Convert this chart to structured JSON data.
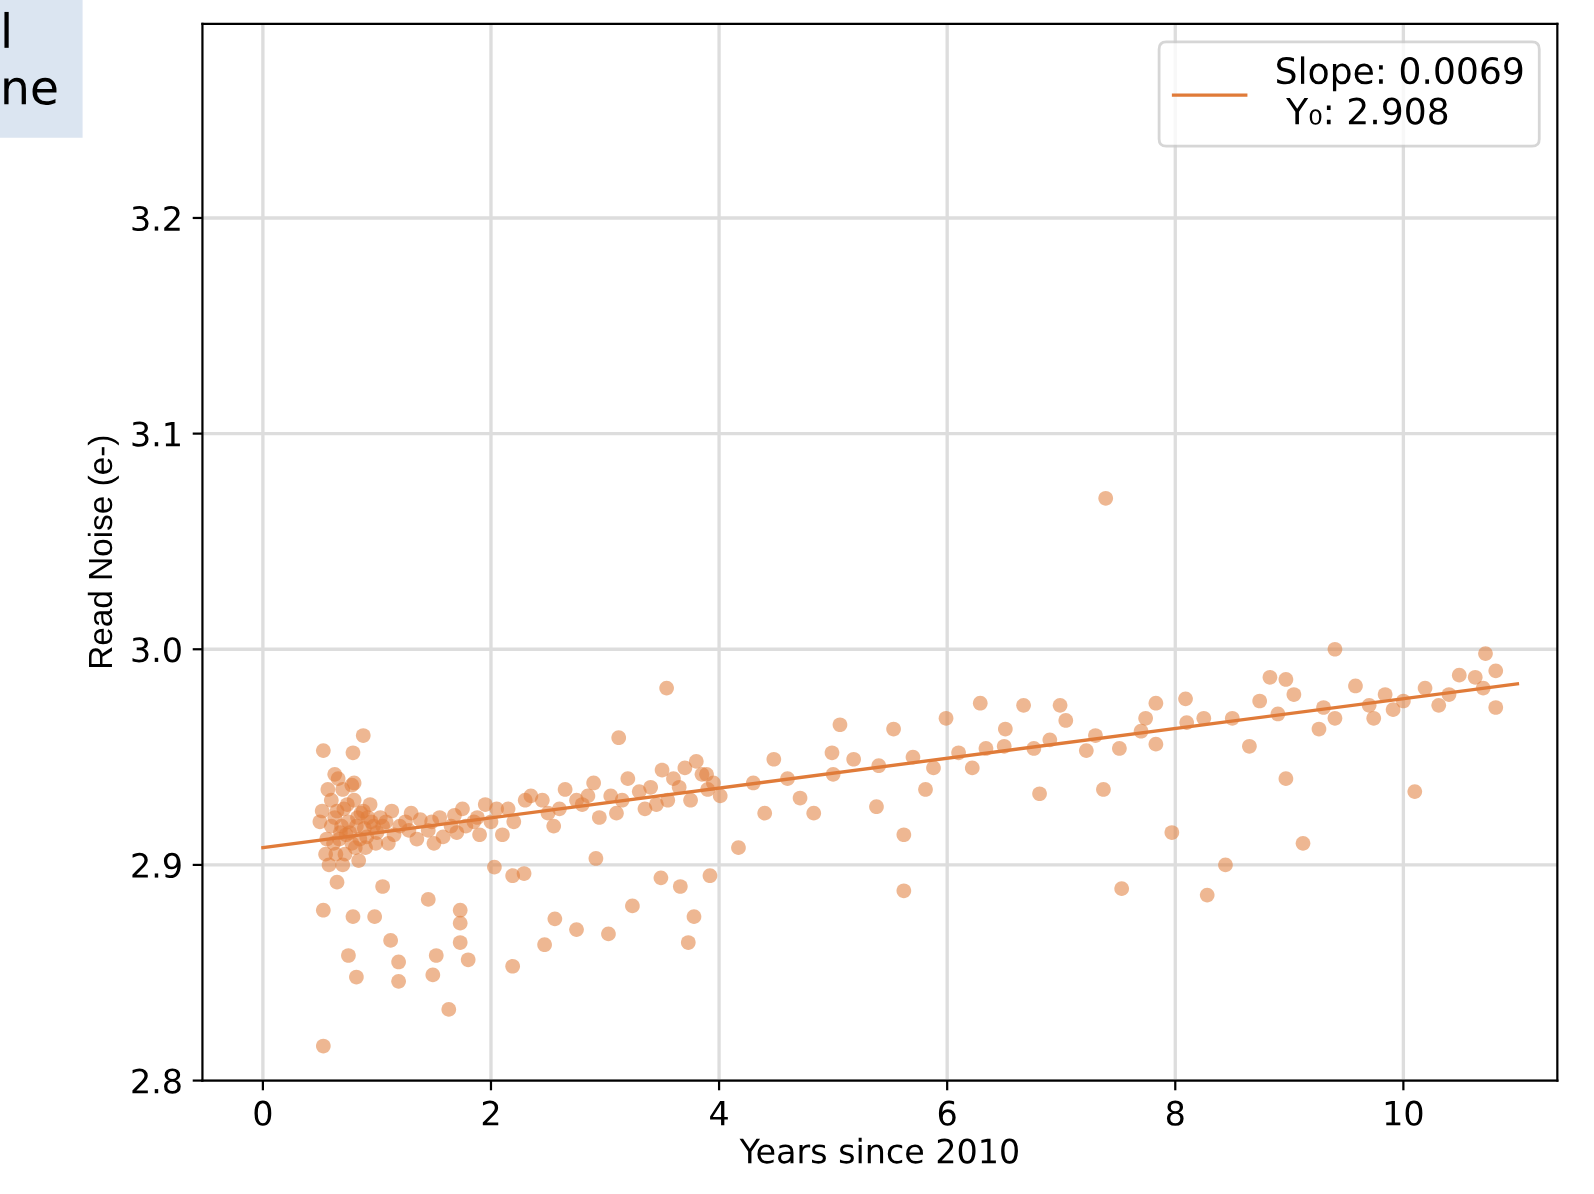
{
  "chart_data": {
    "type": "scatter",
    "xlabel": "Years since 2010",
    "ylabel": "Read Noise (e-)",
    "xlim": [
      -0.53,
      11.35
    ],
    "ylim": [
      2.8,
      3.29
    ],
    "xticks": [
      0,
      2,
      4,
      6,
      8,
      10
    ],
    "yticks": [
      2.8,
      2.9,
      {
        "value": 3.0,
        "label": "3.0"
      },
      3.1,
      3.2
    ],
    "grid": true,
    "legend": "top right",
    "annotations": [
      "l\nne"
    ],
    "series": [
      {
        "marker": "circle",
        "color": "#e07b39",
        "x": [
          0.6,
          0.63,
          0.67,
          0.71,
          0.76,
          0.81,
          0.86,
          0.91,
          0.97,
          0.57,
          0.64,
          0.69,
          0.73,
          0.78,
          0.83,
          0.89,
          0.94,
          0.99,
          1.03,
          1.08,
          1.13,
          1.2,
          1.28,
          1.38,
          1.48,
          1.58,
          1.68,
          1.78,
          1.88,
          2.0,
          2.15,
          2.45,
          2.6,
          2.85,
          3.15,
          3.4,
          3.55,
          3.7,
          3.85,
          0.5,
          0.55,
          0.6,
          0.62,
          0.65,
          0.68,
          0.7,
          0.72,
          0.75,
          0.78,
          0.8,
          0.82,
          0.85,
          0.88,
          0.9,
          0.95,
          1.0,
          0.52,
          0.58,
          0.66,
          0.74,
          0.84,
          0.92,
          0.56,
          0.7,
          0.8,
          1.05,
          1.15,
          1.25,
          1.35,
          1.45,
          1.55,
          1.65,
          1.75,
          1.85,
          1.95,
          1.1,
          1.3,
          1.5,
          1.7,
          1.9,
          2.05,
          2.2,
          2.35,
          2.5,
          2.65,
          2.8,
          2.95,
          2.1,
          2.3,
          2.55,
          2.75,
          2.9,
          3.05,
          3.2,
          3.35,
          3.5,
          3.65,
          3.8,
          3.95,
          3.1,
          3.3,
          3.45,
          3.6,
          3.75,
          3.9,
          0.53,
          0.88,
          0.79,
          0.63,
          0.53,
          0.65,
          0.79,
          0.98,
          0.75,
          0.82,
          1.12,
          1.19,
          1.19,
          1.05,
          1.45,
          1.52,
          1.49,
          1.63,
          1.73,
          1.73,
          1.8,
          1.73,
          0.53,
          2.03,
          2.19,
          2.29,
          2.19,
          2.47,
          2.56,
          2.75,
          3.03,
          3.24,
          2.92,
          3.73,
          3.54,
          3.12,
          3.49,
          3.66,
          3.78,
          3.92,
          5.06,
          4.99,
          5.53,
          5.38,
          5.62,
          5.62,
          4.17,
          4.4,
          4.48,
          4.83,
          5.81,
          5.99,
          6.29,
          6.22,
          6.67,
          6.51,
          6.81,
          6.99,
          7.22,
          7.37,
          7.53,
          7.51,
          7.83,
          7.83,
          7.97,
          8.09,
          8.28,
          8.44,
          8.25,
          8.65,
          8.83,
          8.97,
          8.97,
          9.12,
          9.04,
          9.4,
          9.26,
          9.74,
          9.91,
          10.1,
          10.19,
          10.49,
          10.63,
          10.72,
          10.81,
          10.81,
          9.58,
          9.84,
          10.31,
          9.4,
          8.74,
          7.74,
          7.04,
          6.76,
          6.34,
          5.88,
          5.18,
          4.71,
          3.89,
          4.01,
          7.39,
          4.3,
          4.6,
          5.0,
          5.4,
          5.7,
          6.1,
          6.5,
          6.9,
          7.3,
          7.7,
          8.1,
          8.5,
          8.9,
          9.3,
          9.7,
          10.0,
          10.4,
          10.7
        ],
        "values": [
          2.918,
          2.922,
          2.912,
          2.926,
          2.915,
          2.908,
          2.924,
          2.913,
          2.918,
          2.935,
          2.905,
          2.918,
          2.914,
          2.937,
          2.922,
          2.917,
          2.928,
          2.91,
          2.922,
          2.92,
          2.925,
          2.918,
          2.916,
          2.921,
          2.92,
          2.913,
          2.923,
          2.918,
          2.922,
          2.92,
          2.926,
          2.93,
          2.926,
          2.932,
          2.93,
          2.936,
          2.93,
          2.945,
          2.942,
          2.92,
          2.905,
          2.93,
          2.91,
          2.925,
          2.915,
          2.935,
          2.905,
          2.92,
          2.91,
          2.93,
          2.918,
          2.912,
          2.925,
          2.908,
          2.92,
          2.915,
          2.925,
          2.9,
          2.94,
          2.928,
          2.902,
          2.922,
          2.912,
          2.9,
          2.938,
          2.918,
          2.914,
          2.92,
          2.912,
          2.916,
          2.922,
          2.918,
          2.926,
          2.92,
          2.928,
          2.91,
          2.924,
          2.91,
          2.915,
          2.914,
          2.926,
          2.92,
          2.932,
          2.924,
          2.935,
          2.928,
          2.922,
          2.914,
          2.93,
          2.918,
          2.93,
          2.938,
          2.932,
          2.94,
          2.926,
          2.944,
          2.936,
          2.948,
          2.938,
          2.924,
          2.934,
          2.928,
          2.94,
          2.93,
          2.935,
          2.953,
          2.96,
          2.952,
          2.942,
          2.879,
          2.892,
          2.876,
          2.876,
          2.858,
          2.848,
          2.865,
          2.855,
          2.846,
          2.89,
          2.884,
          2.858,
          2.849,
          2.833,
          2.879,
          2.864,
          2.856,
          2.873,
          2.816,
          2.899,
          2.895,
          2.896,
          2.853,
          2.863,
          2.875,
          2.87,
          2.868,
          2.881,
          2.903,
          2.864,
          2.982,
          2.959,
          2.894,
          2.89,
          2.876,
          2.895,
          2.965,
          2.952,
          2.963,
          2.927,
          2.914,
          2.888,
          2.908,
          2.924,
          2.949,
          2.924,
          2.935,
          2.968,
          2.975,
          2.945,
          2.974,
          2.963,
          2.933,
          2.974,
          2.953,
          2.935,
          2.889,
          2.954,
          2.975,
          2.956,
          2.915,
          2.977,
          2.886,
          2.9,
          2.968,
          2.955,
          2.987,
          2.986,
          2.94,
          2.91,
          2.979,
          3.0,
          2.963,
          2.968,
          2.972,
          2.934,
          2.982,
          2.988,
          2.987,
          2.998,
          2.973,
          2.99,
          2.983,
          2.979,
          2.974,
          2.968,
          2.976,
          2.968,
          2.967,
          2.954,
          2.954,
          2.945,
          2.949,
          2.931,
          2.942,
          2.932,
          3.07,
          2.938,
          2.94,
          2.942,
          2.946,
          2.95,
          2.952,
          2.955,
          2.958,
          2.96,
          2.962,
          2.966,
          2.968,
          2.97,
          2.973,
          2.974,
          2.976,
          2.979,
          2.982
        ]
      },
      {
        "type": "line",
        "name": "Slope: 0.0069\n Y₀: 2.908",
        "color": "#e07b39",
        "x": [
          0,
          11
        ],
        "values": [
          2.908,
          2.984
        ]
      }
    ]
  }
}
